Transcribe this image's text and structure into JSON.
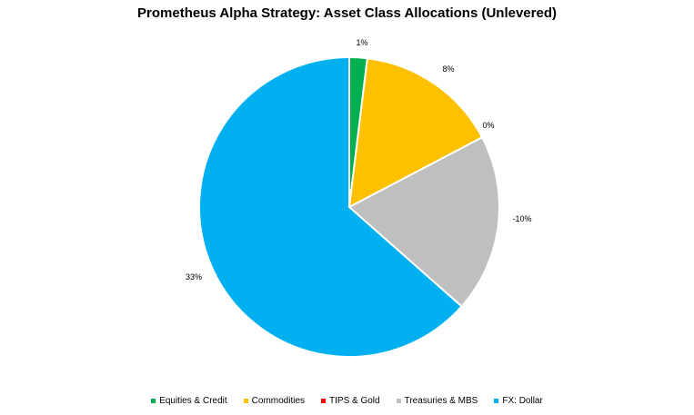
{
  "chart_data": {
    "type": "pie",
    "title": "Prometheus Alpha Strategy: Asset Class Allocations (Unlevered)",
    "series": [
      {
        "name": "Equities & Credit",
        "label": "1%",
        "share": 0.0192,
        "color": "#00B050"
      },
      {
        "name": "Commodities",
        "label": "8%",
        "share": 0.1538,
        "color": "#FFC000"
      },
      {
        "name": "TIPS & Gold",
        "label": "0%",
        "share": 0.0,
        "color": "#FF0000"
      },
      {
        "name": "Treasuries & MBS",
        "label": "-10%",
        "share": 0.1923,
        "color": "#BFBFBF"
      },
      {
        "name": "FX: Dollar",
        "label": "33%",
        "share": 0.6346,
        "color": "#00B0F0"
      }
    ],
    "legend_position": "bottom"
  }
}
